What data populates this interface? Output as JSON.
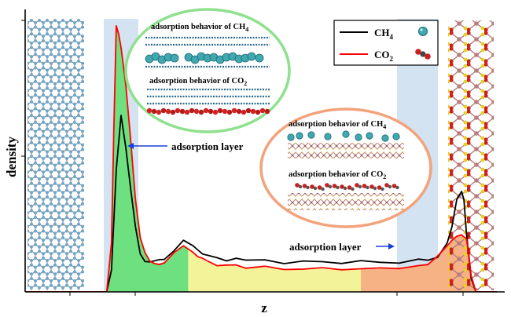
{
  "chart_data": {
    "type": "line",
    "xlabel": "z",
    "ylabel": "density",
    "xlim": [
      0,
      100
    ],
    "ylim": [
      0,
      100
    ],
    "series": [
      {
        "name": "CH4",
        "color": "#000000",
        "x": [
          0,
          16,
          17,
          18,
          19,
          20,
          21,
          22,
          23,
          24,
          25,
          26,
          27,
          28,
          29,
          31,
          33,
          35,
          36,
          37,
          38,
          40,
          42,
          44,
          46,
          50,
          54,
          58,
          62,
          66,
          70,
          74,
          78,
          82,
          84,
          86,
          88,
          89,
          90,
          91,
          91.5,
          92,
          93,
          94,
          95,
          100
        ],
        "y": [
          0,
          0,
          0,
          8,
          45,
          65,
          53,
          38,
          24,
          14,
          11,
          10.5,
          11,
          12,
          12.5,
          15,
          18.5,
          17.5,
          16,
          14,
          13,
          12.5,
          12,
          12,
          11.5,
          11.5,
          11,
          11,
          11,
          11,
          11,
          11,
          11,
          11.5,
          12,
          13,
          18,
          24,
          34,
          37,
          34,
          22,
          5,
          0,
          0,
          0
        ]
      },
      {
        "name": "CO2",
        "color": "#ff0000",
        "x": [
          0,
          16,
          17,
          18,
          18.5,
          19,
          19.5,
          20,
          21,
          22,
          23,
          24,
          25,
          26,
          27,
          28,
          29,
          31,
          33,
          35,
          36,
          37,
          38,
          40,
          42,
          44,
          46,
          50,
          54,
          58,
          62,
          66,
          70,
          74,
          78,
          82,
          84,
          86,
          88,
          89,
          90,
          91,
          92,
          92.5,
          93,
          94,
          100
        ],
        "y": [
          0,
          0,
          0,
          18,
          60,
          98,
          95,
          90,
          76,
          56,
          34,
          20,
          14,
          11,
          10.5,
          10.5,
          11,
          14,
          17,
          15,
          13,
          12,
          11,
          10,
          10,
          9.5,
          9,
          9,
          8.5,
          8.5,
          8.5,
          8.5,
          8.5,
          8.5,
          9,
          9.5,
          10.5,
          13,
          17,
          19,
          20.5,
          21,
          19.5,
          14,
          6,
          0,
          0
        ]
      }
    ],
    "legend": [
      {
        "label": "CH",
        "sub": "4",
        "series": "CH4"
      },
      {
        "label": "CO",
        "sub": "2",
        "series": "CO2"
      }
    ],
    "legend_position": "top-right",
    "annotations": {
      "left_layer": "adsorption layer",
      "right_layer": "adsorption layer",
      "green_inset_ch4": "adsorption behavior of CH",
      "green_inset_co2": "adsorption behavior of CO",
      "orange_inset_ch4": "adsorption behavior of CH",
      "orange_inset_co2": "adsorption behavior of CO",
      "sub_ch4": "4",
      "sub_co2": "2"
    },
    "region_colors": {
      "layer_band": "#d4e3f1",
      "green_fill": "#6fe07f",
      "yellow_fill": "#f3f39a",
      "orange_fill": "#f6b184",
      "green_circle": "#8fe08f",
      "orange_circle": "#f2a37c"
    }
  }
}
